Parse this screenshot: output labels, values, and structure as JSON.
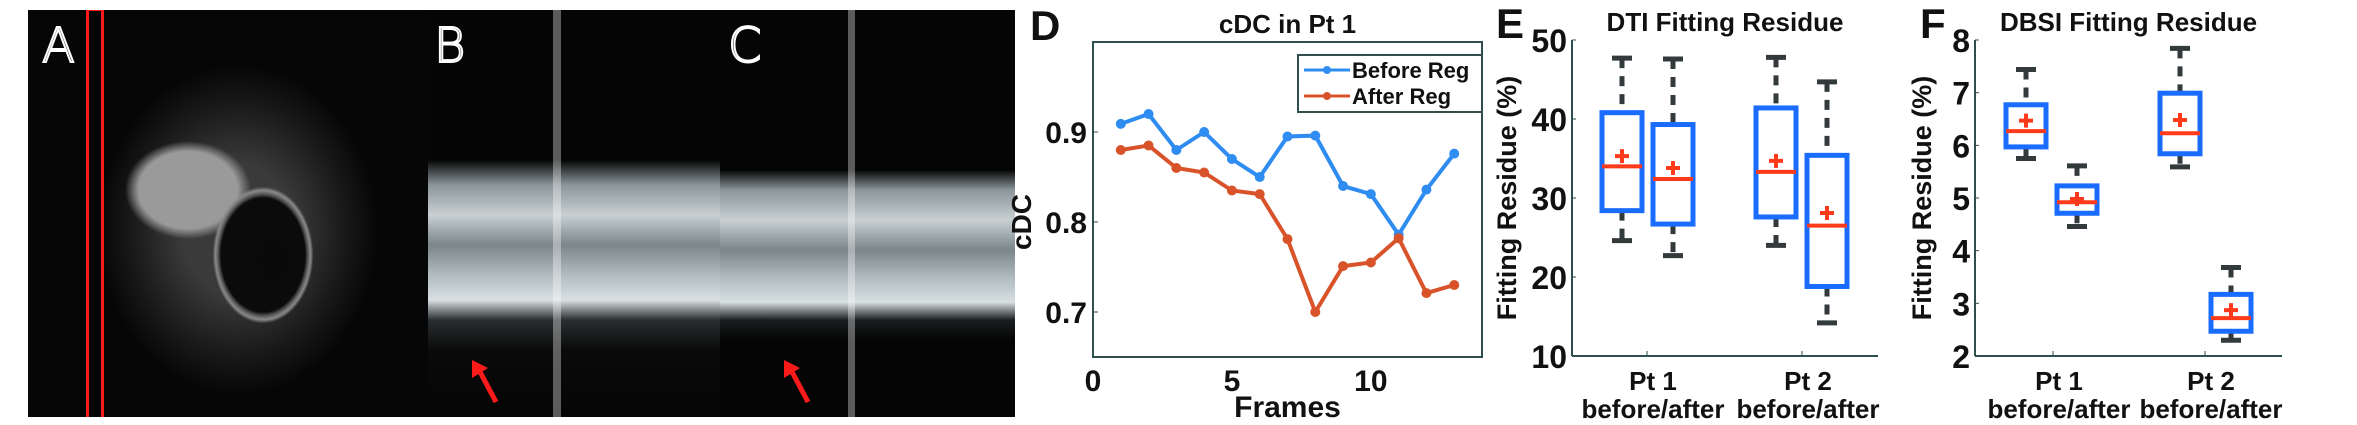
{
  "panels": {
    "a": "A",
    "b": "B",
    "c": "C",
    "d": "D",
    "e": "E",
    "f": "F"
  },
  "colors": {
    "before": "#2f8cf0",
    "after": "#d9532a",
    "box": "#1a6cff",
    "median": "#ff3a1a",
    "whisker": "#333a3c",
    "highlight": "#ff1a1a"
  },
  "chart_data": [
    {
      "type": "line",
      "title": "cDC in Pt 1",
      "xlabel": "Frames",
      "ylabel": "cDC",
      "xlim": [
        0,
        14
      ],
      "ylim": [
        0.65,
        1.0
      ],
      "xticks": [
        "0",
        "5",
        "10"
      ],
      "yticks": [
        "0.7",
        "0.8",
        "0.9"
      ],
      "legend": "top-right",
      "x": [
        1,
        2,
        3,
        4,
        5,
        6,
        7,
        8,
        9,
        10,
        11,
        12,
        13
      ],
      "series": [
        {
          "name": "Before Reg",
          "marker": "asterisk",
          "values": [
            0.909,
            0.92,
            0.88,
            0.9,
            0.87,
            0.85,
            0.895,
            0.896,
            0.84,
            0.831,
            0.786,
            0.836,
            0.876
          ]
        },
        {
          "name": "After Reg",
          "marker": "dot",
          "values": [
            0.88,
            0.885,
            0.86,
            0.855,
            0.835,
            0.831,
            0.781,
            0.7,
            0.751,
            0.755,
            0.782,
            0.721,
            0.73
          ]
        }
      ]
    },
    {
      "type": "box",
      "title": "DTI Fitting Residue",
      "ylabel": "Fitting Residue (%)",
      "ylim": [
        10,
        50
      ],
      "yticks": [
        "10",
        "20",
        "30",
        "40",
        "50"
      ],
      "categories": [
        {
          "line1": "Pt 1",
          "line2": "before/after"
        },
        {
          "line1": "Pt 2",
          "line2": "before/after"
        }
      ],
      "boxes": [
        {
          "group": 0,
          "which": "before",
          "min": 24.6,
          "q1": 28.4,
          "median": 34.0,
          "mean": 35.3,
          "q3": 40.8,
          "max": 47.7
        },
        {
          "group": 0,
          "which": "after",
          "min": 22.7,
          "q1": 26.7,
          "median": 32.4,
          "mean": 33.8,
          "q3": 39.3,
          "max": 47.6
        },
        {
          "group": 1,
          "which": "before",
          "min": 24.0,
          "q1": 27.6,
          "median": 33.3,
          "mean": 34.7,
          "q3": 41.4,
          "max": 47.8
        },
        {
          "group": 1,
          "which": "after",
          "min": 14.2,
          "q1": 18.8,
          "median": 26.5,
          "mean": 28.1,
          "q3": 35.4,
          "max": 44.7
        }
      ]
    },
    {
      "type": "box",
      "title": "DBSI Fitting Residue",
      "ylabel": "Fitting Residue (%)",
      "ylim": [
        2,
        8
      ],
      "yticks": [
        "2",
        "3",
        "4",
        "5",
        "6",
        "7",
        "8"
      ],
      "categories": [
        {
          "line1": "Pt 1",
          "line2": "before/after"
        },
        {
          "line1": "Pt 2",
          "line2": "before/after"
        }
      ],
      "boxes": [
        {
          "group": 0,
          "which": "before",
          "min": 5.75,
          "q1": 5.97,
          "median": 6.27,
          "mean": 6.47,
          "q3": 6.77,
          "max": 7.44
        },
        {
          "group": 0,
          "which": "after",
          "min": 4.46,
          "q1": 4.71,
          "median": 4.92,
          "mean": 4.98,
          "q3": 5.23,
          "max": 5.61
        },
        {
          "group": 1,
          "which": "before",
          "min": 5.59,
          "q1": 5.84,
          "median": 6.23,
          "mean": 6.48,
          "q3": 6.99,
          "max": 7.84
        },
        {
          "group": 1,
          "which": "after",
          "min": 2.3,
          "q1": 2.47,
          "median": 2.72,
          "mean": 2.87,
          "q3": 3.17,
          "max": 3.68
        }
      ]
    }
  ]
}
